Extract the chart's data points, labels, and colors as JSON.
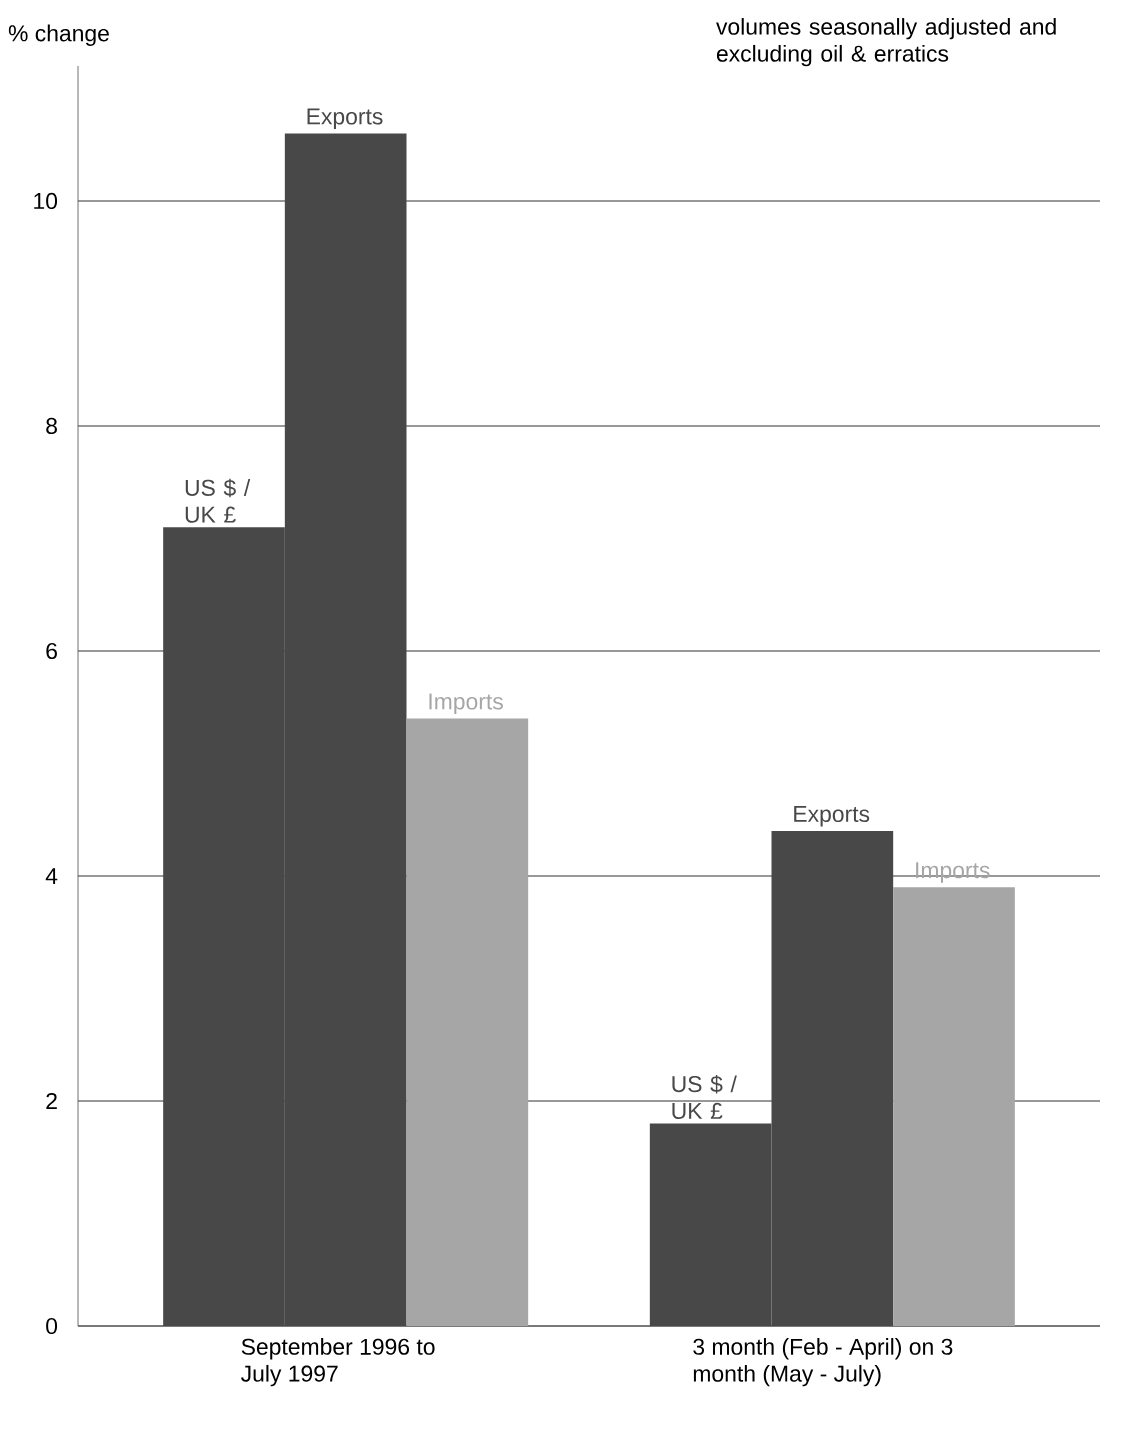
{
  "chart_data": {
    "type": "bar",
    "ylabel": "% change",
    "annotations": [
      "volumes seasonally adjusted and excluding oil & erratics"
    ],
    "categories": [
      "September 1996 to July 1997",
      "3 month (Feb - April) on 3 month (May - July)"
    ],
    "series": [
      {
        "name": "US $ / UK £",
        "color": "#484848",
        "values": [
          7.1,
          1.8
        ]
      },
      {
        "name": "Exports",
        "color": "#484848",
        "values": [
          10.6,
          4.4
        ]
      },
      {
        "name": "Imports",
        "color": "#a6a6a6",
        "values": [
          5.4,
          3.9
        ]
      }
    ],
    "ylim": [
      0,
      11.2
    ],
    "yticks": [
      0,
      2,
      4,
      6,
      8,
      10
    ],
    "grid": "y"
  }
}
